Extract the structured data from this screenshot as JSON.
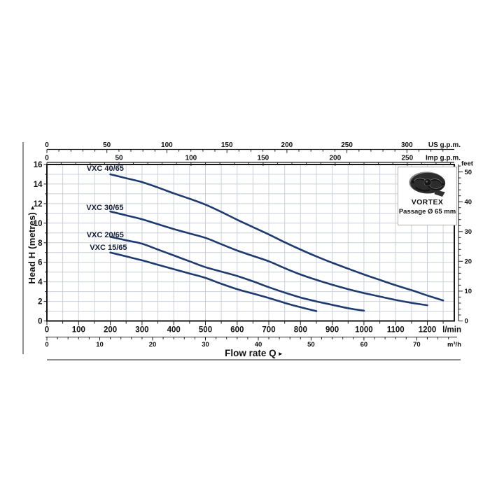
{
  "legend": {
    "title": "VORTEX",
    "subtitle": "Passage Ø 65 mm"
  },
  "chart_data": {
    "type": "line",
    "title": "",
    "xlabel": "Flow rate Q",
    "ylabel": "Head H (metres)",
    "arrow": "▸",
    "grid": "on",
    "legend_position": "top-right",
    "xlim_lmin": [
      0,
      1285
    ],
    "ylim_m": [
      0,
      16
    ],
    "colors": {
      "curve": "#1e3a6e",
      "curve_label": "#131c36",
      "grid": "#cbd0d8",
      "border": "#161616",
      "axis": "#222222",
      "text": "#111111",
      "rule": "#8f8f8f"
    },
    "axes": {
      "lmin": {
        "name": "lmin",
        "unit": "l/min",
        "labels": [
          0,
          100,
          200,
          300,
          400,
          500,
          600,
          700,
          800,
          900,
          1000,
          1100,
          1200
        ],
        "minor_step": 50,
        "to_lmin": 1,
        "tick_max": 1250
      },
      "us_gpm": {
        "name": "us-gpm",
        "unit": "US g.p.m.",
        "labels": [
          0,
          50,
          100,
          150,
          200,
          250,
          300
        ],
        "minor_step": 10,
        "to_lmin": 3.7854,
        "tick_max": 335
      },
      "imp_gpm": {
        "name": "imp-gpm",
        "unit": "Imp g.p.m.",
        "labels": [
          0,
          50,
          100,
          150,
          200,
          250
        ],
        "minor_step": 10,
        "to_lmin": 4.5461,
        "tick_max": 280
      },
      "m3h": {
        "name": "m3h",
        "unit": "m³/h",
        "labels": [
          0,
          10,
          20,
          30,
          40,
          50,
          60,
          70
        ],
        "minor_step": 2,
        "to_lmin": 16.667,
        "tick_max": 76
      },
      "metres": {
        "name": "metres",
        "unit": "",
        "labels": [
          0,
          2,
          4,
          6,
          8,
          10,
          12,
          14,
          16
        ],
        "minor_step": 1
      },
      "feet": {
        "name": "feet",
        "unit": "feet",
        "labels": [
          0,
          10,
          20,
          30,
          40,
          50
        ],
        "minor_step": 2,
        "to_metres": 0.3048,
        "tick_max": 52
      }
    },
    "series": [
      {
        "name": "VXC 40/65",
        "label_pos": [
          184,
          15.65
        ],
        "points": [
          [
            200,
            15
          ],
          [
            250,
            14.6
          ],
          [
            300,
            14.2
          ],
          [
            350,
            13.65
          ],
          [
            400,
            13.05
          ],
          [
            450,
            12.5
          ],
          [
            500,
            11.9
          ],
          [
            550,
            11.15
          ],
          [
            600,
            10.35
          ],
          [
            650,
            9.6
          ],
          [
            700,
            8.85
          ],
          [
            750,
            8.05
          ],
          [
            800,
            7.3
          ],
          [
            850,
            6.6
          ],
          [
            900,
            5.95
          ],
          [
            950,
            5.35
          ],
          [
            1000,
            4.75
          ],
          [
            1050,
            4.2
          ],
          [
            1100,
            3.65
          ],
          [
            1150,
            3.15
          ],
          [
            1200,
            2.6
          ],
          [
            1250,
            2.1
          ]
        ]
      },
      {
        "name": "VXC 30/65",
        "label_pos": [
          183,
          11.63
        ],
        "points": [
          [
            200,
            11.2
          ],
          [
            250,
            10.8
          ],
          [
            300,
            10.4
          ],
          [
            350,
            9.9
          ],
          [
            400,
            9.4
          ],
          [
            450,
            8.95
          ],
          [
            500,
            8.5
          ],
          [
            550,
            7.85
          ],
          [
            600,
            7.2
          ],
          [
            650,
            6.65
          ],
          [
            700,
            6.1
          ],
          [
            750,
            5.4
          ],
          [
            800,
            4.75
          ],
          [
            850,
            4.2
          ],
          [
            900,
            3.7
          ],
          [
            950,
            3.25
          ],
          [
            1000,
            2.85
          ],
          [
            1050,
            2.5
          ],
          [
            1100,
            2.15
          ],
          [
            1150,
            1.85
          ],
          [
            1200,
            1.6
          ]
        ]
      },
      {
        "name": "VXC 20/65",
        "label_pos": [
          184,
          8.84
        ],
        "points": [
          [
            200,
            8.6
          ],
          [
            250,
            8.25
          ],
          [
            300,
            7.9
          ],
          [
            350,
            7.3
          ],
          [
            400,
            6.7
          ],
          [
            450,
            6.1
          ],
          [
            500,
            5.5
          ],
          [
            550,
            5.05
          ],
          [
            600,
            4.6
          ],
          [
            650,
            4.05
          ],
          [
            700,
            3.45
          ],
          [
            750,
            2.9
          ],
          [
            800,
            2.4
          ],
          [
            850,
            2.0
          ],
          [
            900,
            1.65
          ],
          [
            950,
            1.3
          ],
          [
            1000,
            1.05
          ]
        ]
      },
      {
        "name": "VXC 15/65",
        "label_pos": [
          194,
          7.55
        ],
        "points": [
          [
            200,
            7.0
          ],
          [
            250,
            6.6
          ],
          [
            300,
            6.2
          ],
          [
            350,
            5.75
          ],
          [
            400,
            5.3
          ],
          [
            450,
            4.85
          ],
          [
            500,
            4.4
          ],
          [
            550,
            3.8
          ],
          [
            600,
            3.25
          ],
          [
            650,
            2.8
          ],
          [
            700,
            2.35
          ],
          [
            750,
            1.85
          ],
          [
            800,
            1.4
          ],
          [
            850,
            1.0
          ]
        ]
      }
    ]
  }
}
